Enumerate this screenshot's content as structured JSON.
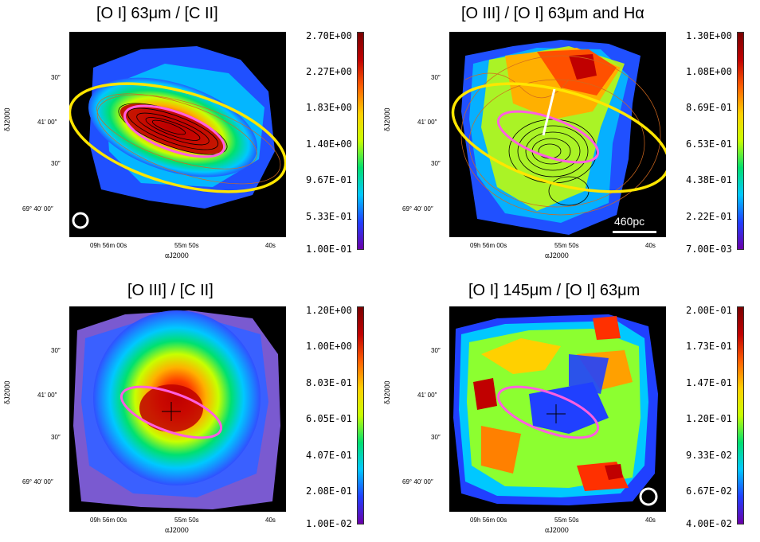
{
  "chart_data": [
    {
      "type": "heatmap",
      "title": "[O I] 63μm / [C II]",
      "xlabel": "αJ2000",
      "ylabel": "δJ2000",
      "x_ticks": [
        "09h 56m 00s",
        "55m 50s",
        "40s"
      ],
      "y_ticks": [
        "30″",
        "41′ 00″",
        "30″",
        "69° 40′ 00″"
      ],
      "colorbar_ticks": [
        "2.70E+00",
        "2.27E+00",
        "1.83E+00",
        "1.40E+00",
        "9.67E-01",
        "5.33E-01",
        "1.00E-01"
      ],
      "colorbar_range": [
        0.1,
        2.7
      ],
      "overlays": [
        "yellow ellipse",
        "magenta ellipse",
        "black contours",
        "orange contours",
        "beam circle"
      ]
    },
    {
      "type": "heatmap",
      "title": "[O III] / [O I] 63μm and Hα",
      "xlabel": "αJ2000",
      "ylabel": "δJ2000",
      "x_ticks": [
        "09h 56m 00s",
        "55m 50s",
        "40s"
      ],
      "y_ticks": [
        "30″",
        "41′ 00″",
        "30″",
        "69° 40′ 00″"
      ],
      "colorbar_ticks": [
        "1.30E+00",
        "1.08E+00",
        "8.69E-01",
        "6.53E-01",
        "4.38E-01",
        "2.22E-01",
        "7.00E-03"
      ],
      "colorbar_range": [
        0.007,
        1.3
      ],
      "scale_bar_label": "460pc",
      "overlays": [
        "yellow ellipse",
        "magenta ellipse",
        "white line",
        "black contours",
        "orange contours"
      ]
    },
    {
      "type": "heatmap",
      "title": "[O III] / [C II]",
      "xlabel": "αJ2000",
      "ylabel": "δJ2000",
      "x_ticks": [
        "09h 56m 00s",
        "55m 50s",
        "40s"
      ],
      "y_ticks": [
        "30″",
        "41′ 00″",
        "30″",
        "69° 40′ 00″"
      ],
      "colorbar_ticks": [
        "1.20E+00",
        "1.00E+00",
        "8.03E-01",
        "6.05E-01",
        "4.07E-01",
        "2.08E-01",
        "1.00E-02"
      ],
      "colorbar_range": [
        0.01,
        1.2
      ],
      "overlays": [
        "magenta ellipse",
        "center cross"
      ]
    },
    {
      "type": "heatmap",
      "title": "[O I] 145μm / [O I] 63μm",
      "xlabel": "αJ2000",
      "ylabel": "δJ2000",
      "x_ticks": [
        "09h 56m 00s",
        "55m 50s",
        "40s"
      ],
      "y_ticks": [
        "30″",
        "41′ 00″",
        "30″",
        "69° 40′ 00″"
      ],
      "colorbar_ticks": [
        "2.00E-01",
        "1.73E-01",
        "1.47E-01",
        "1.20E-01",
        "9.33E-02",
        "6.67E-02",
        "4.00E-02"
      ],
      "colorbar_range": [
        0.04,
        0.2
      ],
      "overlays": [
        "magenta ellipse",
        "center cross",
        "beam circle"
      ]
    }
  ],
  "colors": {
    "map_background": "#000000",
    "yellow_ellipse": "#ffe600",
    "magenta_ellipse": "#ff5fe0",
    "contour_black": "#000000",
    "contour_orange": "#d2691e",
    "colormap": [
      "#6a00a8",
      "#2040ff",
      "#00c8ff",
      "#00e070",
      "#c8ff00",
      "#ffd000",
      "#ff6000",
      "#c00000",
      "#7a0000"
    ]
  }
}
